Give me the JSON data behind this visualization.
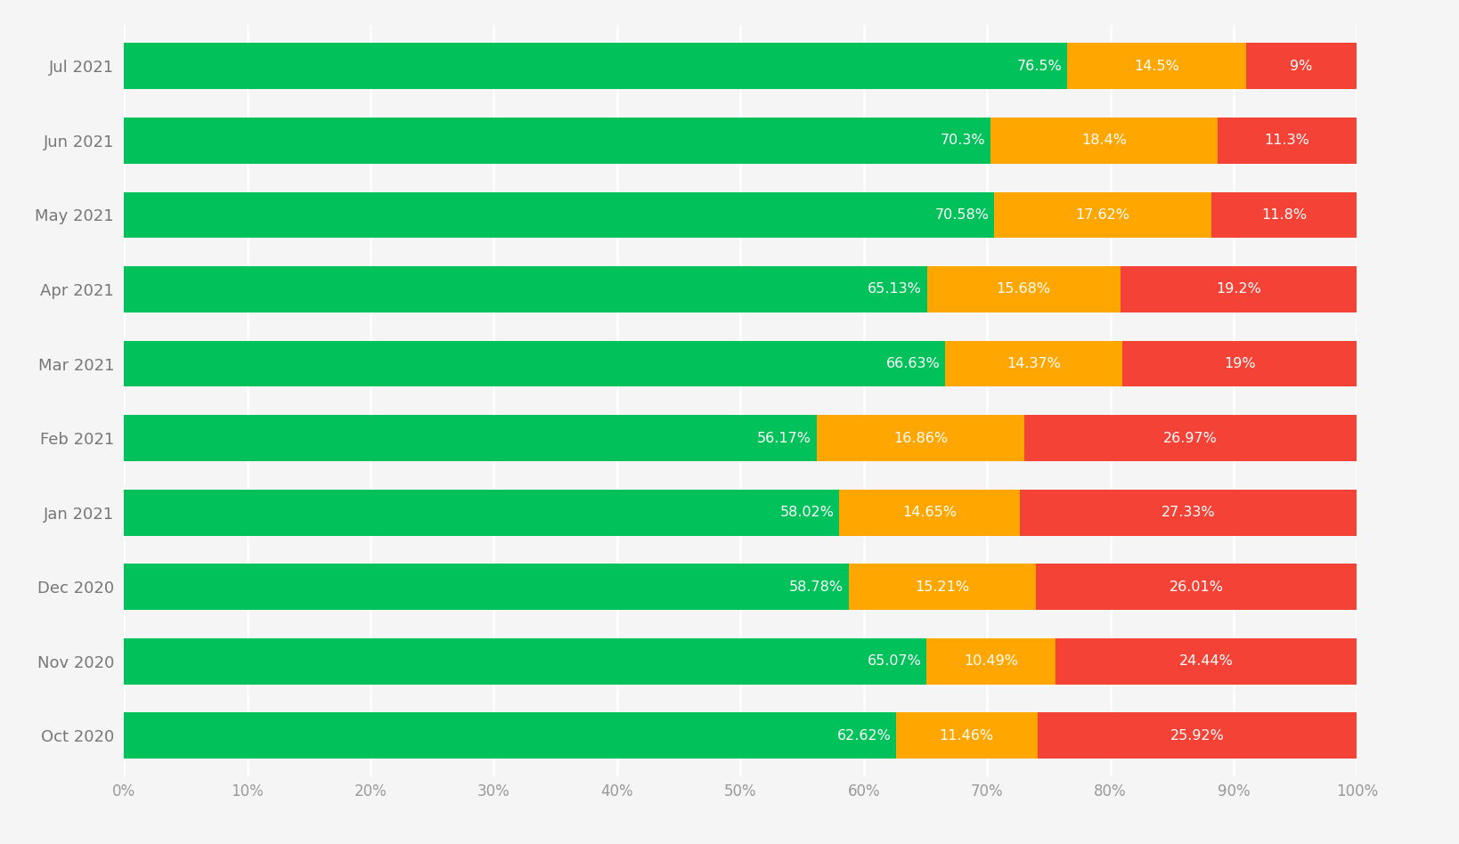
{
  "months": [
    "Oct 2020",
    "Nov 2020",
    "Dec 2020",
    "Jan 2021",
    "Feb 2021",
    "Mar 2021",
    "Apr 2021",
    "May 2021",
    "Jun 2021",
    "Jul 2021"
  ],
  "good": [
    62.62,
    65.07,
    58.78,
    58.02,
    56.17,
    66.63,
    65.13,
    70.58,
    70.3,
    76.5
  ],
  "needs_improvement": [
    11.46,
    10.49,
    15.21,
    14.65,
    16.86,
    14.37,
    15.68,
    17.62,
    18.4,
    14.5
  ],
  "poor": [
    25.92,
    24.44,
    26.01,
    27.33,
    26.97,
    19.0,
    19.2,
    11.8,
    11.3,
    9.0
  ],
  "good_labels": [
    "62.62%",
    "65.07%",
    "58.78%",
    "58.02%",
    "56.17%",
    "66.63%",
    "65.13%",
    "70.58%",
    "70.3%",
    "76.5%"
  ],
  "needs_improvement_labels": [
    "11.46%",
    "10.49%",
    "15.21%",
    "14.65%",
    "16.86%",
    "14.37%",
    "15.68%",
    "17.62%",
    "18.4%",
    "14.5%"
  ],
  "poor_labels": [
    "25.92%",
    "24.44%",
    "26.01%",
    "27.33%",
    "26.97%",
    "19%",
    "19.2%",
    "11.8%",
    "11.3%",
    "9%"
  ],
  "color_good": "#00C15A",
  "color_needs_improvement": "#FFA700",
  "color_poor": "#F44336",
  "background_color": "#F5F5F5",
  "text_color_white": "#FFFFFF",
  "grid_color": "#FFFFFF",
  "xlabel_ticks": [
    "0%",
    "10%",
    "20%",
    "30%",
    "40%",
    "50%",
    "60%",
    "70%",
    "80%",
    "90%",
    "100%"
  ],
  "xlabel_vals": [
    0,
    10,
    20,
    30,
    40,
    50,
    60,
    70,
    80,
    90,
    100
  ],
  "ytick_color": "#777777",
  "xtick_color": "#999999",
  "label_fontsize": 11.5,
  "ytick_fontsize": 13,
  "xtick_fontsize": 12,
  "bar_height": 0.62
}
